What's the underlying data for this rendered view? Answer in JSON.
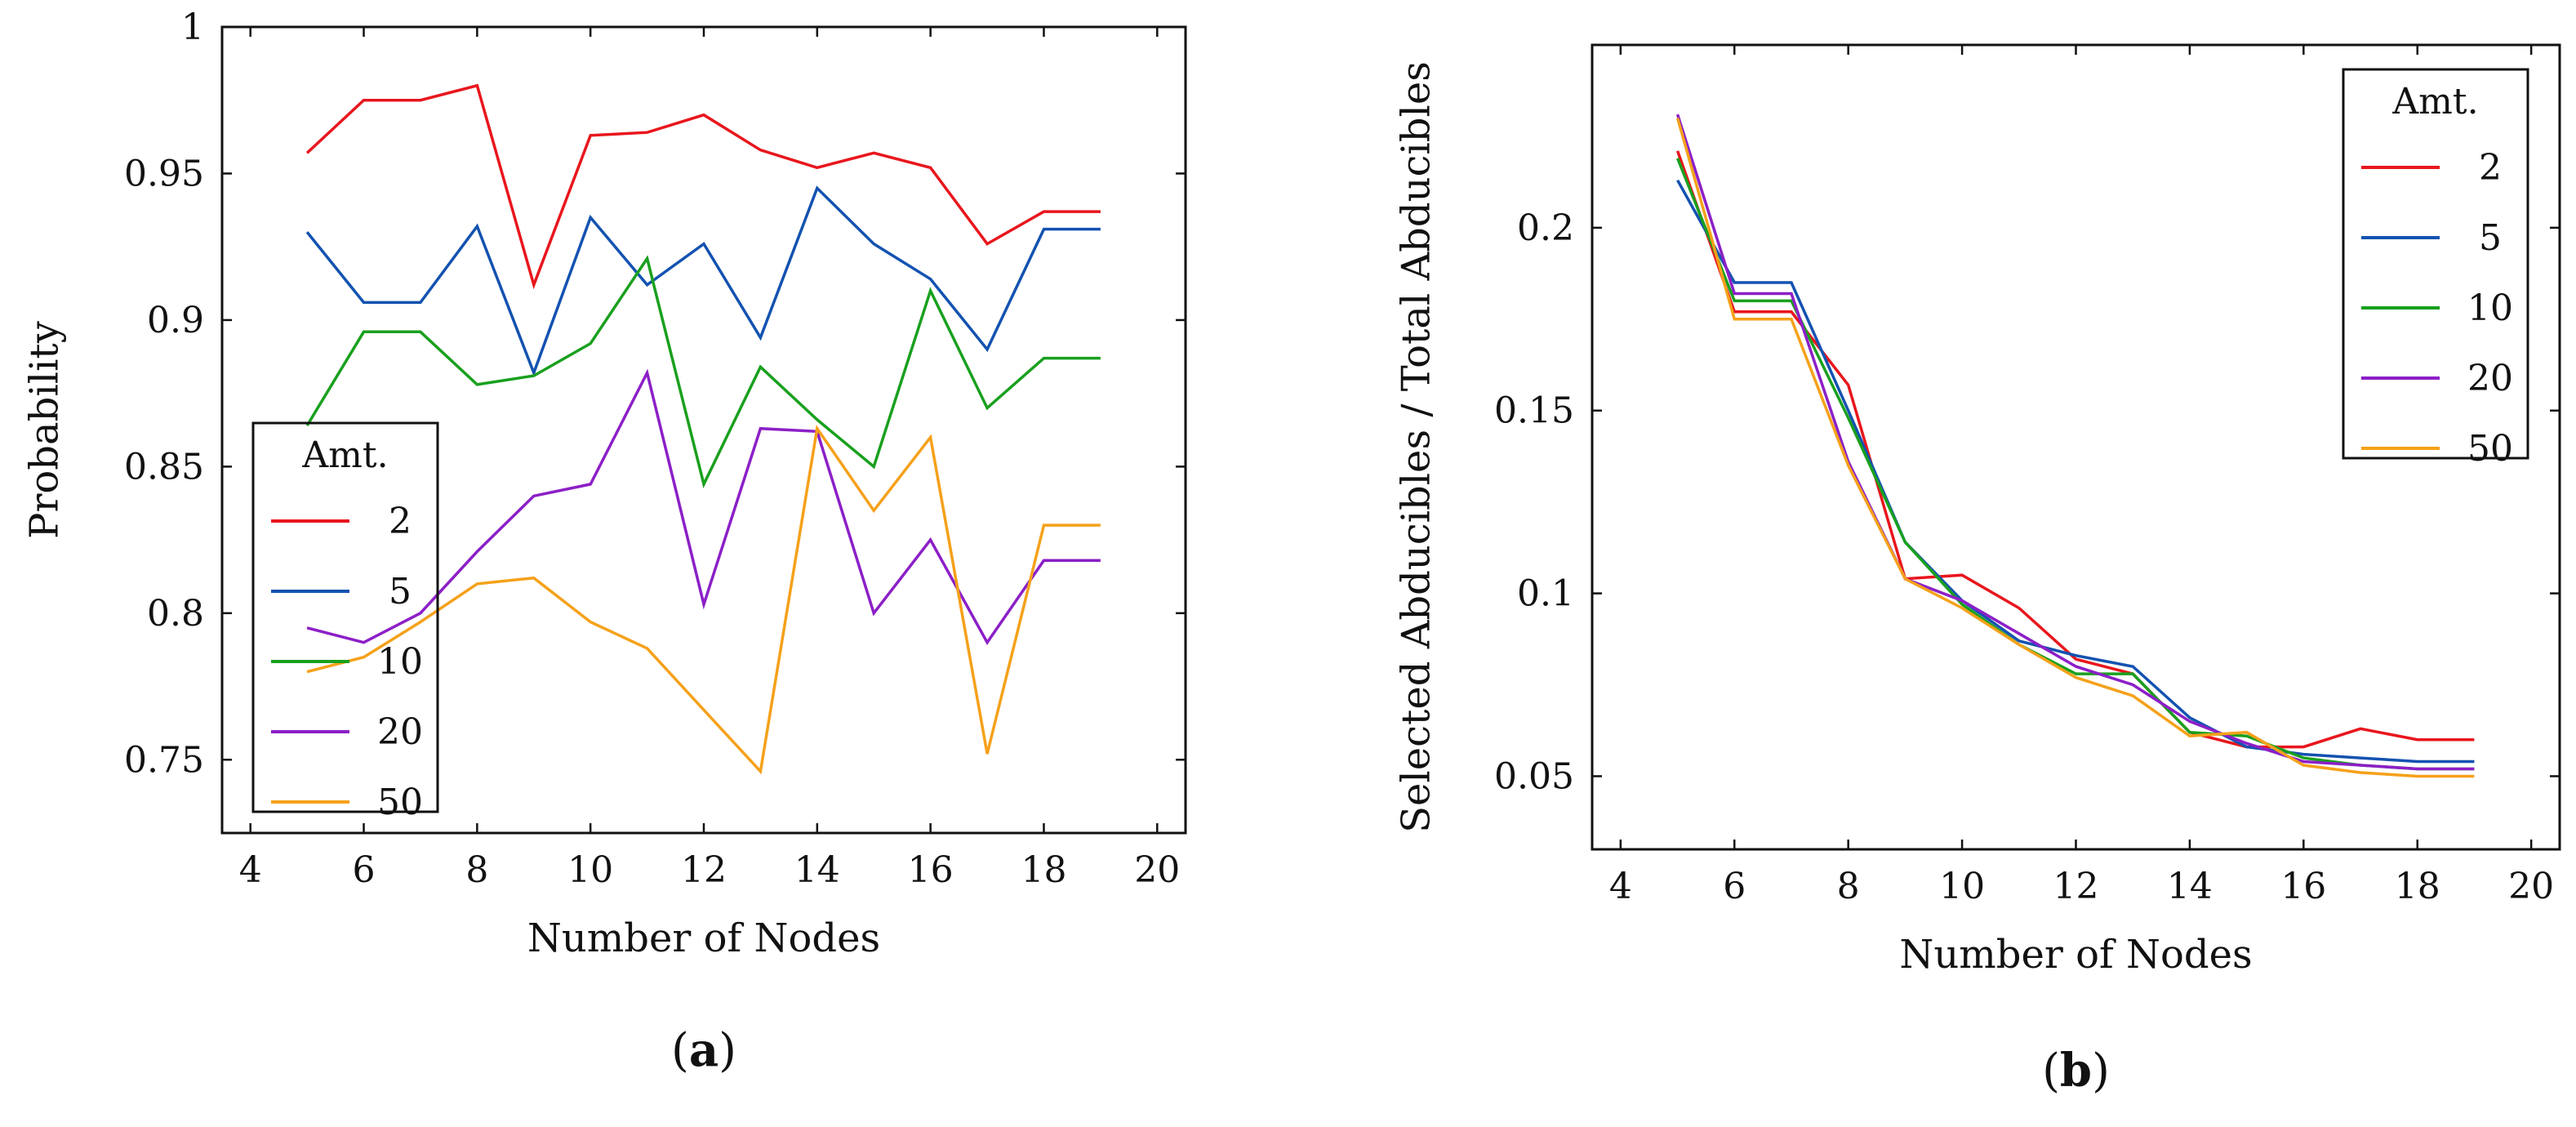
{
  "colors": {
    "2": "#e8161d",
    "5": "#1352b0",
    "10": "#19a01e",
    "20": "#8c1fc7",
    "50": "#f5a11a"
  },
  "chart_data": [
    {
      "id": "a",
      "type": "line",
      "panel_label": "a",
      "title": "",
      "xlabel": "Number of Nodes",
      "ylabel": "Probability",
      "xlim": [
        3.5,
        20.5
      ],
      "ylim": [
        0.725,
        1.0
      ],
      "xticks": [
        4,
        6,
        8,
        10,
        12,
        14,
        16,
        18,
        20
      ],
      "yticks": [
        0.75,
        0.8,
        0.85,
        0.9,
        0.95,
        1
      ],
      "ytick_labels": [
        "0.75",
        "0.8",
        "0.85",
        "0.9",
        "0.95",
        "1"
      ],
      "legend": {
        "title": "Amt.",
        "location": "lower-left"
      },
      "x": [
        5,
        6,
        7,
        8,
        9,
        10,
        11,
        12,
        13,
        14,
        15,
        16,
        17,
        18,
        19
      ],
      "series": [
        {
          "name": "2",
          "values": [
            0.957,
            0.975,
            0.975,
            0.98,
            0.912,
            0.963,
            0.964,
            0.97,
            0.958,
            0.952,
            0.957,
            0.952,
            0.926,
            0.937,
            0.937
          ]
        },
        {
          "name": "5",
          "values": [
            0.93,
            0.906,
            0.906,
            0.932,
            0.882,
            0.935,
            0.912,
            0.926,
            0.894,
            0.945,
            0.926,
            0.914,
            0.89,
            0.931,
            0.931
          ]
        },
        {
          "name": "10",
          "values": [
            0.864,
            0.896,
            0.896,
            0.878,
            0.881,
            0.892,
            0.921,
            0.844,
            0.884,
            0.866,
            0.85,
            0.91,
            0.87,
            0.887,
            0.887
          ]
        },
        {
          "name": "20",
          "values": [
            0.795,
            0.79,
            0.8,
            0.821,
            0.84,
            0.844,
            0.882,
            0.803,
            0.863,
            0.862,
            0.8,
            0.825,
            0.79,
            0.818,
            0.818
          ]
        },
        {
          "name": "50",
          "values": [
            0.78,
            0.785,
            0.797,
            0.81,
            0.812,
            0.797,
            0.788,
            0.767,
            0.746,
            0.863,
            0.835,
            0.86,
            0.752,
            0.83,
            0.83
          ]
        }
      ]
    },
    {
      "id": "b",
      "type": "line",
      "panel_label": "b",
      "title": "",
      "xlabel": "Number of Nodes",
      "ylabel": "Selected Abducibles / Total Abducibles",
      "xlim": [
        3.5,
        20.5
      ],
      "ylim": [
        0.03,
        0.25
      ],
      "xticks": [
        4,
        6,
        8,
        10,
        12,
        14,
        16,
        18,
        20
      ],
      "yticks": [
        0.05,
        0.1,
        0.15,
        0.2
      ],
      "ytick_labels": [
        "0.05",
        "0.1",
        "0.15",
        "0.2"
      ],
      "legend": {
        "title": "Amt.",
        "location": "top-right"
      },
      "x": [
        5,
        6,
        7,
        8,
        9,
        10,
        11,
        12,
        13,
        14,
        15,
        16,
        17,
        18,
        19
      ],
      "series": [
        {
          "name": "2",
          "values": [
            0.221,
            0.177,
            0.177,
            0.157,
            0.104,
            0.105,
            0.096,
            0.082,
            0.078,
            0.062,
            0.058,
            0.058,
            0.063,
            0.06,
            0.06
          ]
        },
        {
          "name": "5",
          "values": [
            0.213,
            0.185,
            0.185,
            0.15,
            0.114,
            0.098,
            0.087,
            0.083,
            0.08,
            0.066,
            0.058,
            0.056,
            0.055,
            0.054,
            0.054
          ]
        },
        {
          "name": "10",
          "values": [
            0.219,
            0.18,
            0.18,
            0.148,
            0.114,
            0.097,
            0.086,
            0.078,
            0.078,
            0.062,
            0.061,
            0.055,
            0.053,
            0.052,
            0.052
          ]
        },
        {
          "name": "20",
          "values": [
            0.231,
            0.182,
            0.182,
            0.136,
            0.104,
            0.098,
            0.089,
            0.08,
            0.075,
            0.065,
            0.059,
            0.054,
            0.053,
            0.052,
            0.052
          ]
        },
        {
          "name": "50",
          "values": [
            0.23,
            0.175,
            0.175,
            0.135,
            0.104,
            0.096,
            0.086,
            0.077,
            0.072,
            0.061,
            0.062,
            0.053,
            0.051,
            0.05,
            0.05
          ]
        }
      ]
    }
  ]
}
